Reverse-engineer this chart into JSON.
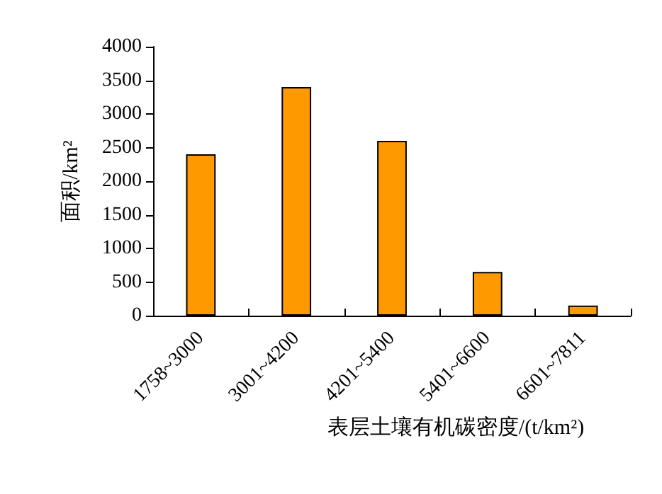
{
  "chart_data": {
    "type": "bar",
    "xlabel": "表层土壤有机碳密度/(t/km²)",
    "ylabel": "面积/km²",
    "categories": [
      "1758~3000",
      "3001~4200",
      "4201~5400",
      "5401~6600",
      "6601~7811"
    ],
    "values": [
      2400,
      3400,
      2600,
      650,
      150
    ],
    "color": "#ff9900",
    "ylim": [
      0,
      4000
    ],
    "yticks": [
      0,
      500,
      1000,
      1500,
      2000,
      2500,
      3000,
      3500,
      4000
    ]
  }
}
